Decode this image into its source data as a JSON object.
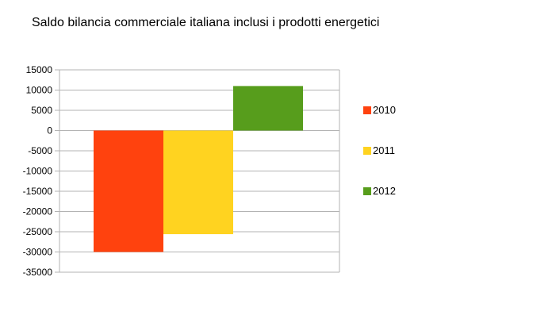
{
  "chart_data": {
    "type": "bar",
    "title": "Saldo bilancia commerciale italiana inclusi i prodotti energetici",
    "categories": [
      ""
    ],
    "series": [
      {
        "name": "2010",
        "values": [
          -30000
        ],
        "color": "#ff420e"
      },
      {
        "name": "2011",
        "values": [
          -25600
        ],
        "color": "#ffd320"
      },
      {
        "name": "2012",
        "values": [
          11000
        ],
        "color": "#579d1c"
      }
    ],
    "ylim": [
      -35000,
      15000
    ],
    "yticks": [
      "15000",
      "10000",
      "5000",
      "0",
      "-5000",
      "-10000",
      "-15000",
      "-20000",
      "-25000",
      "-30000",
      "-35000"
    ],
    "grid": true,
    "legend": "right"
  }
}
